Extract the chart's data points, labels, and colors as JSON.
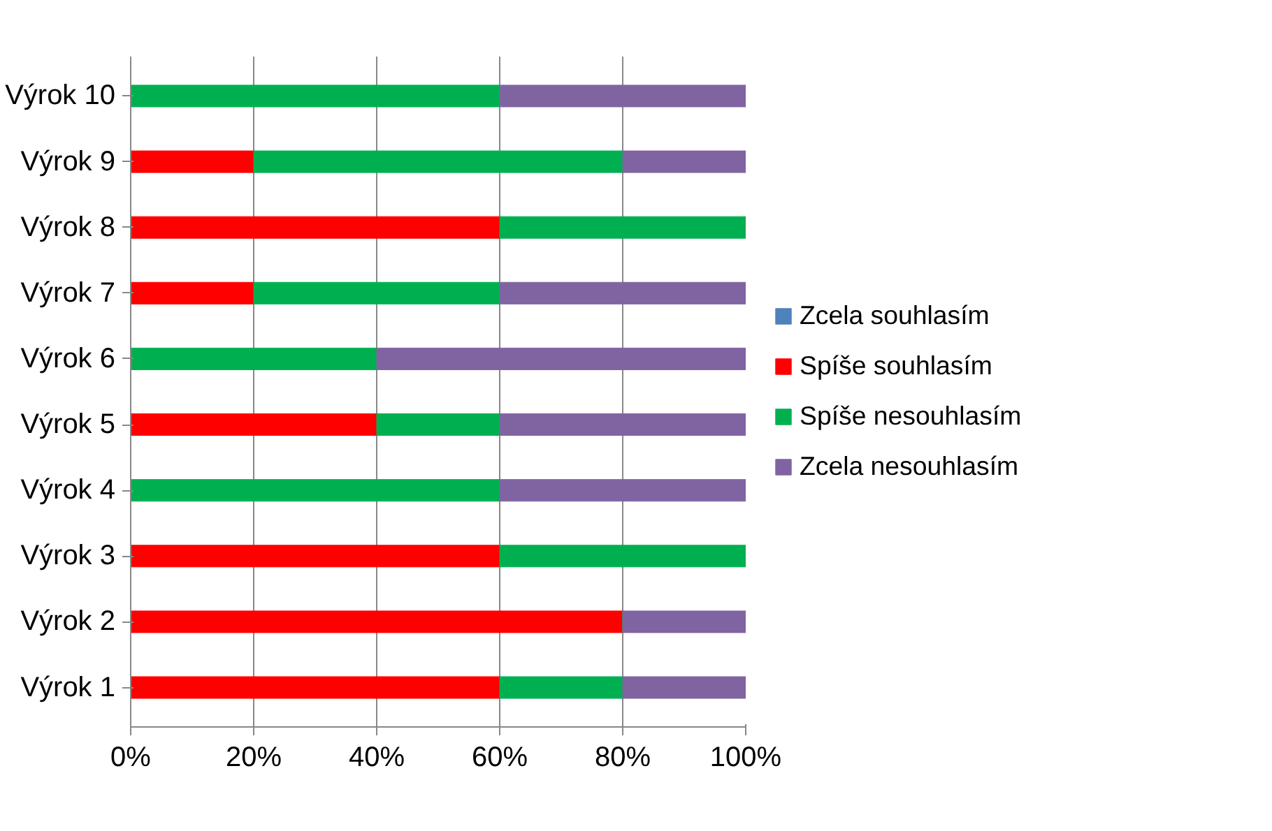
{
  "chart_data": {
    "type": "bar",
    "orientation": "horizontal",
    "stacked": true,
    "categories": [
      "Výrok 10",
      "Výrok 9",
      "Výrok 8",
      "Výrok 7",
      "Výrok 6",
      "Výrok 5",
      "Výrok 4",
      "Výrok 3",
      "Výrok 2",
      "Výrok 1"
    ],
    "series": [
      {
        "name": "Zcela souhlasím",
        "color": "#4f81bd",
        "values": [
          0,
          0,
          0,
          0,
          0,
          0,
          0,
          0,
          0,
          0
        ]
      },
      {
        "name": "Spíše souhlasím",
        "color": "#ff0000",
        "values": [
          0,
          20,
          60,
          20,
          0,
          40,
          0,
          60,
          80,
          60
        ]
      },
      {
        "name": "Spíše nesouhlasím",
        "color": "#00b050",
        "values": [
          60,
          60,
          40,
          40,
          40,
          20,
          60,
          40,
          0,
          20
        ]
      },
      {
        "name": "Zcela nesouhlasím",
        "color": "#8064a2",
        "values": [
          40,
          20,
          0,
          40,
          60,
          40,
          40,
          0,
          20,
          20
        ]
      }
    ],
    "xlim": [
      0,
      100
    ],
    "xticks": [
      {
        "value": 0,
        "label": "0%"
      },
      {
        "value": 20,
        "label": "20%"
      },
      {
        "value": 40,
        "label": "40%"
      },
      {
        "value": 60,
        "label": "60%"
      },
      {
        "value": 80,
        "label": "80%"
      },
      {
        "value": 100,
        "label": "100%"
      }
    ],
    "grid": "x",
    "legend": "right"
  }
}
